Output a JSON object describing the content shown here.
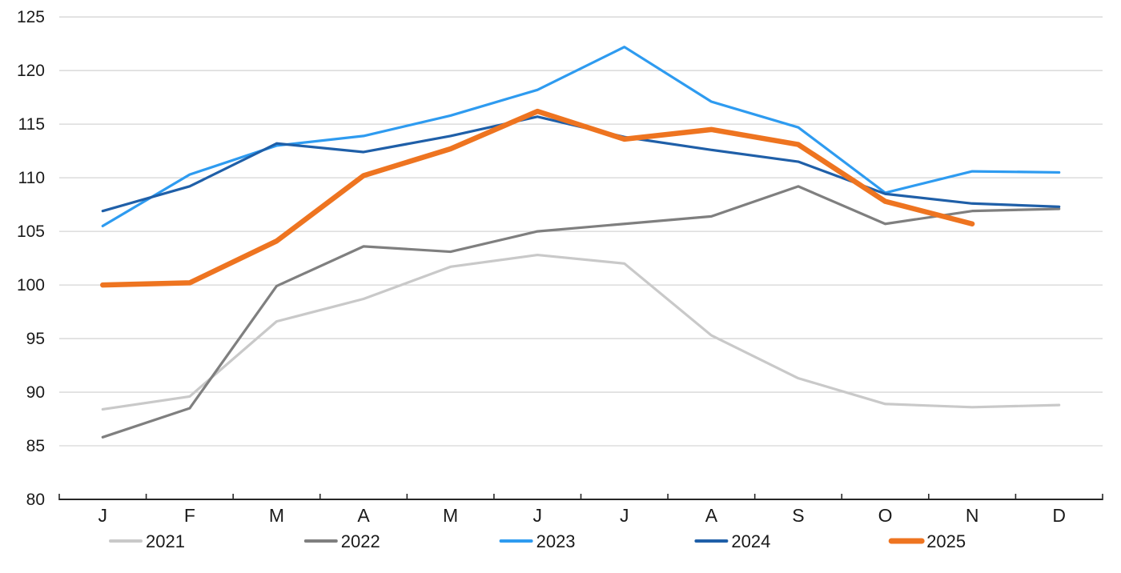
{
  "page": {
    "background_color": "#ffffff"
  },
  "chart_data": {
    "type": "line",
    "title": "",
    "xlabel": "",
    "ylabel": "",
    "categories": [
      "J",
      "F",
      "M",
      "A",
      "M",
      "J",
      "J",
      "A",
      "S",
      "O",
      "N",
      "D"
    ],
    "y_axis": {
      "min": 80,
      "max": 125,
      "step": 5
    },
    "grid": true,
    "legend_position": "bottom",
    "colors": {
      "gridline": "#d6d6d6",
      "axis": "#262626",
      "label": "#1a1a1a"
    },
    "series": [
      {
        "name": "2021",
        "color": "#c9c9c9",
        "emphasis": false,
        "values": [
          88.4,
          89.6,
          96.6,
          98.7,
          101.7,
          102.8,
          102.0,
          95.3,
          91.3,
          88.9,
          88.6,
          88.8
        ]
      },
      {
        "name": "2022",
        "color": "#7f7f7f",
        "emphasis": false,
        "values": [
          85.8,
          88.5,
          99.9,
          103.6,
          103.1,
          105.0,
          105.7,
          106.4,
          109.2,
          105.7,
          106.9,
          107.1
        ]
      },
      {
        "name": "2023",
        "color": "#2e9bf0",
        "emphasis": false,
        "values": [
          105.5,
          110.3,
          113.0,
          113.9,
          115.8,
          118.2,
          122.2,
          117.1,
          114.7,
          108.6,
          110.6,
          110.5
        ]
      },
      {
        "name": "2024",
        "color": "#1f5fa8",
        "emphasis": false,
        "values": [
          106.9,
          109.2,
          113.2,
          112.4,
          113.9,
          115.7,
          113.8,
          112.6,
          111.5,
          108.5,
          107.6,
          107.3
        ]
      },
      {
        "name": "2025",
        "color": "#ee7420",
        "emphasis": true,
        "values": [
          100.0,
          100.2,
          104.1,
          110.2,
          112.7,
          116.2,
          113.6,
          114.5,
          113.1,
          107.8,
          105.7
        ]
      }
    ]
  }
}
